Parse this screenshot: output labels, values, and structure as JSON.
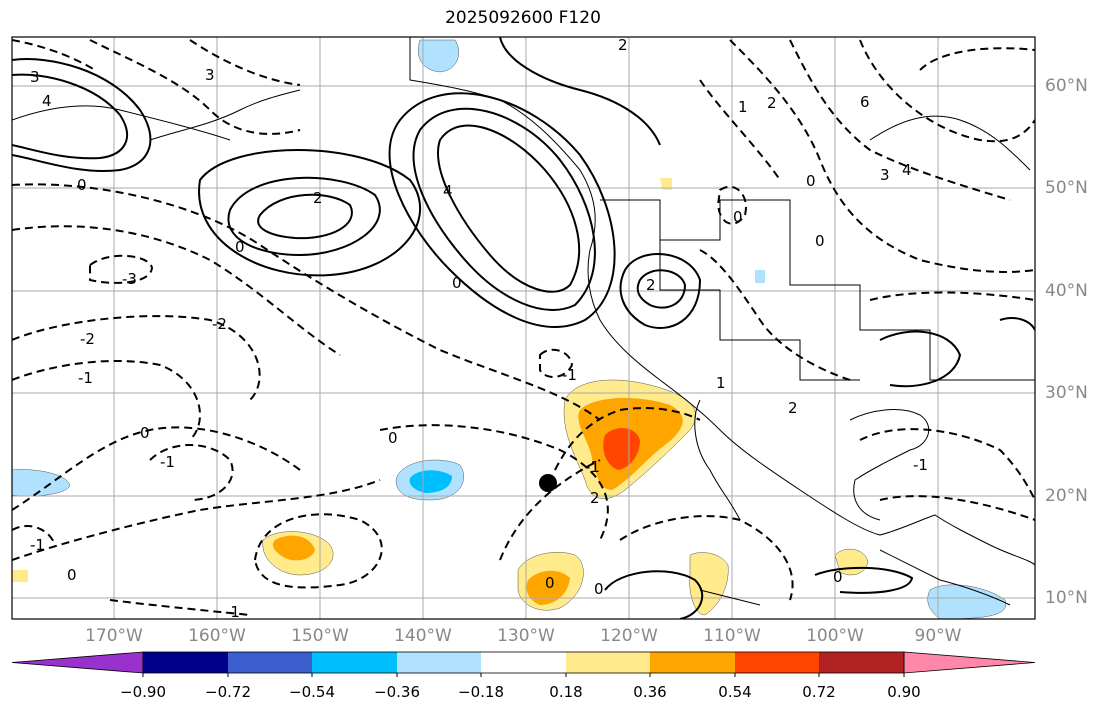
{
  "title": "2025092600 F120",
  "lon_labels": [
    "170°W",
    "160°W",
    "150°W",
    "140°W",
    "130°W",
    "120°W",
    "110°W",
    "100°W",
    "90°W"
  ],
  "lat_labels": [
    "60°N",
    "50°N",
    "40°N",
    "30°N",
    "20°N",
    "10°N"
  ],
  "colorbar": {
    "ticks": [
      "−0.90",
      "−0.72",
      "−0.54",
      "−0.36",
      "−0.18",
      "0.18",
      "0.36",
      "0.54",
      "0.72",
      "0.90"
    ],
    "colors": [
      "#9932cc",
      "#00008b",
      "#3a5fcd",
      "#00bfff",
      "#b0e2ff",
      "#ffffff",
      "#ffeb8c",
      "#ffa500",
      "#ff4500",
      "#b22222",
      "#ff88aa"
    ]
  },
  "contour_labels": [
    "2",
    "3",
    "4",
    "0",
    "-1",
    "-2",
    "-3",
    "6",
    "1"
  ],
  "marker": "storm-center-dot"
}
